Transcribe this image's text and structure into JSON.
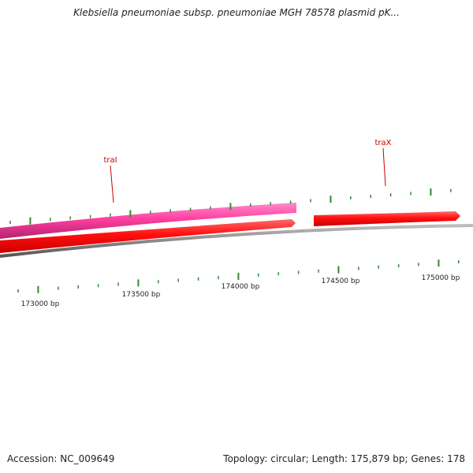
{
  "title": "Klebsiella pneumoniae subsp. pneumoniae MGH 78578 plasmid pK...",
  "footer": {
    "accession": "Accession: NC_009649",
    "summary": "Topology: circular; Length: 175,879 bp; Genes: 178"
  },
  "colors": {
    "backbone": "#8a8a8a",
    "forward_gene": "#ff1010",
    "reverse_gene": "#ff3fa0",
    "tick": "#2e8b2e",
    "gene_label": "#cc0000"
  },
  "scale_labels": [
    "173000 bp",
    "173500 bp",
    "174000 bp",
    "174500 bp",
    "175000 bp"
  ],
  "genes": [
    {
      "name": "traI",
      "strand": "reverse"
    },
    {
      "name": "traX",
      "strand": "forward"
    }
  ]
}
